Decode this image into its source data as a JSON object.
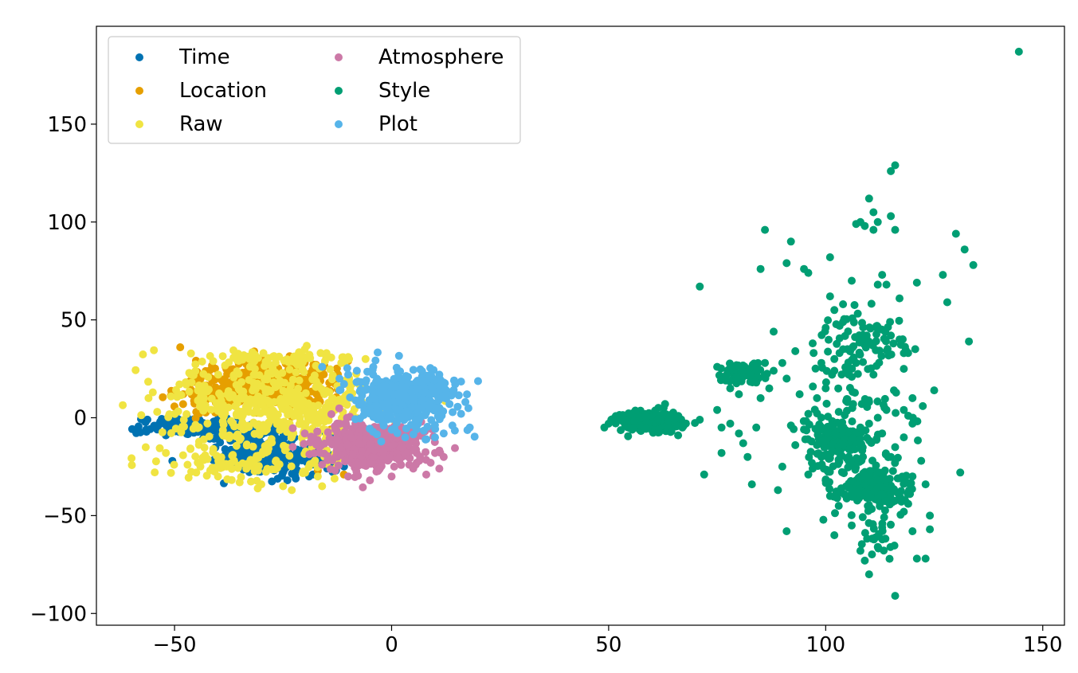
{
  "chart_data": {
    "type": "scatter",
    "title": "",
    "xlabel": "",
    "ylabel": "",
    "xlim": [
      -68,
      155
    ],
    "ylim": [
      -106,
      200
    ],
    "xticks": [
      -50,
      0,
      50,
      100,
      150
    ],
    "yticks": [
      -100,
      -50,
      0,
      50,
      100,
      150
    ],
    "xtick_labels": [
      "−50",
      "0",
      "50",
      "100",
      "150"
    ],
    "ytick_labels": [
      "−100",
      "−50",
      "0",
      "50",
      "100",
      "150"
    ],
    "grid": false,
    "legend_position": "top-left",
    "legend_columns": 2,
    "series": [
      {
        "name": "Time",
        "color": "#0072b2",
        "clusters": [
          {
            "cx": -27,
            "cy": -20,
            "sx": 6,
            "sy": 5,
            "n": 250
          },
          {
            "cx": -45,
            "cy": -5,
            "sx": 6,
            "sy": 2.5,
            "n": 140
          },
          {
            "cx": -33,
            "cy": -8,
            "sx": 4,
            "sy": 3,
            "n": 60
          }
        ],
        "points": [
          [
            -54,
            -6
          ],
          [
            -52,
            -9
          ],
          [
            -24,
            -32
          ],
          [
            -19,
            -30
          ],
          [
            -35,
            -4
          ],
          [
            -40,
            -3
          ],
          [
            -50,
            -1
          ]
        ]
      },
      {
        "name": "Location",
        "color": "#e69f00",
        "clusters": [
          {
            "cx": -28,
            "cy": 17,
            "sx": 7,
            "sy": 6,
            "n": 320
          },
          {
            "cx": -42,
            "cy": 14,
            "sx": 4,
            "sy": 5,
            "n": 90
          }
        ],
        "points": [
          [
            -20,
            28
          ],
          [
            -16,
            25
          ],
          [
            -10,
            29
          ],
          [
            -48,
            12
          ],
          [
            -45,
            3
          ],
          [
            -14,
            -6
          ],
          [
            -11,
            -29
          ],
          [
            -17,
            -27
          ],
          [
            -38,
            27
          ],
          [
            -30,
            30
          ]
        ]
      },
      {
        "name": "Raw",
        "color": "#f0e442",
        "clusters": [
          {
            "cx": -28,
            "cy": 5,
            "sx": 12,
            "sy": 13,
            "n": 380
          },
          {
            "cx": -38,
            "cy": -24,
            "sx": 8,
            "sy": 4,
            "n": 60
          },
          {
            "cx": -30,
            "cy": 30,
            "sx": 10,
            "sy": 2,
            "n": 60
          },
          {
            "cx": -18,
            "cy": -2,
            "sx": 5,
            "sy": 12,
            "n": 100
          }
        ],
        "points": [
          [
            -55,
            13
          ],
          [
            -56,
            10
          ],
          [
            -54,
            3
          ],
          [
            -52,
            -18
          ],
          [
            -47,
            -24
          ],
          [
            -45,
            -28
          ],
          [
            -40,
            -30
          ],
          [
            -35,
            -33
          ],
          [
            -30,
            -34
          ],
          [
            -25,
            -35
          ],
          [
            -20,
            35
          ],
          [
            -15,
            33
          ],
          [
            -10,
            31
          ],
          [
            -6,
            30
          ],
          [
            -16,
            -35
          ],
          [
            -17,
            -30
          ],
          [
            -13,
            -26
          ],
          [
            -23,
            -37
          ]
        ]
      },
      {
        "name": "Atmosphere",
        "color": "#cc79a7",
        "clusters": [
          {
            "cx": -5,
            "cy": -14,
            "sx": 6,
            "sy": 6,
            "n": 450
          }
        ],
        "points": [
          [
            -20,
            -8
          ],
          [
            -18,
            -10
          ],
          [
            10,
            -18
          ],
          [
            12,
            -20
          ],
          [
            11,
            -26
          ],
          [
            9,
            -23
          ],
          [
            -10,
            -30
          ],
          [
            -5,
            -32
          ],
          [
            0,
            -30
          ],
          [
            -13,
            -27
          ],
          [
            -16,
            -24
          ],
          [
            5,
            -26
          ]
        ]
      },
      {
        "name": "Style",
        "color": "#009e73",
        "clusters": [
          {
            "cx": 60,
            "cy": -2,
            "sx": 3.5,
            "sy": 2.4,
            "n": 300
          },
          {
            "cx": 81,
            "cy": 23,
            "sx": 3,
            "sy": 2.5,
            "n": 70
          },
          {
            "cx": 103,
            "cy": -12,
            "sx": 3,
            "sy": 5,
            "n": 120
          },
          {
            "cx": 112,
            "cy": -37,
            "sx": 4,
            "sy": 5,
            "n": 140
          },
          {
            "cx": 109,
            "cy": 40,
            "sx": 4,
            "sy": 8,
            "n": 70
          },
          {
            "cx": 106,
            "cy": -25,
            "sx": 5,
            "sy": 10,
            "n": 90
          },
          {
            "cx": 106,
            "cy": 15,
            "sx": 7,
            "sy": 15,
            "n": 60
          },
          {
            "cx": 111,
            "cy": -60,
            "sx": 3,
            "sy": 8,
            "n": 25
          }
        ],
        "points": [
          [
            49,
            -5
          ],
          [
            50,
            -3
          ],
          [
            52,
            -1
          ],
          [
            53,
            1
          ],
          [
            63,
            7
          ],
          [
            66,
            -9
          ],
          [
            67,
            -5
          ],
          [
            71,
            -1
          ],
          [
            72,
            -29
          ],
          [
            71,
            67
          ],
          [
            75,
            4
          ],
          [
            76,
            -5
          ],
          [
            76,
            -18
          ],
          [
            78,
            -3
          ],
          [
            80,
            -8
          ],
          [
            81,
            -13
          ],
          [
            82,
            -20
          ],
          [
            83,
            -34
          ],
          [
            84,
            -5
          ],
          [
            85,
            10
          ],
          [
            85,
            76
          ],
          [
            86,
            96
          ],
          [
            88,
            44
          ],
          [
            89,
            -37
          ],
          [
            90,
            -25
          ],
          [
            91,
            -58
          ],
          [
            91,
            79
          ],
          [
            92,
            90
          ],
          [
            93,
            34
          ],
          [
            94,
            12
          ],
          [
            95,
            76
          ],
          [
            96,
            74
          ],
          [
            97,
            38
          ],
          [
            98,
            10
          ],
          [
            99,
            28
          ],
          [
            100,
            46
          ],
          [
            101,
            62
          ],
          [
            101,
            82
          ],
          [
            102,
            55
          ],
          [
            104,
            58
          ],
          [
            106,
            70
          ],
          [
            107,
            99
          ],
          [
            108,
            100
          ],
          [
            109,
            98
          ],
          [
            110,
            112
          ],
          [
            111,
            105
          ],
          [
            111,
            96
          ],
          [
            112,
            100
          ],
          [
            112,
            68
          ],
          [
            113,
            73
          ],
          [
            114,
            68
          ],
          [
            115,
            103
          ],
          [
            115,
            126
          ],
          [
            116,
            129
          ],
          [
            116,
            96
          ],
          [
            116,
            -91
          ],
          [
            117,
            61
          ],
          [
            117,
            40
          ],
          [
            118,
            33
          ],
          [
            118,
            25
          ],
          [
            119,
            1
          ],
          [
            120,
            -58
          ],
          [
            121,
            -72
          ],
          [
            122,
            -22
          ],
          [
            123,
            -72
          ],
          [
            123,
            -34
          ],
          [
            124,
            -50
          ],
          [
            124,
            -57
          ],
          [
            125,
            14
          ],
          [
            127,
            73
          ],
          [
            128,
            59
          ],
          [
            130,
            94
          ],
          [
            131,
            -28
          ],
          [
            132,
            86
          ],
          [
            133,
            39
          ],
          [
            134,
            78
          ],
          [
            144.5,
            187
          ],
          [
            110,
            -80
          ],
          [
            109,
            -73
          ],
          [
            112,
            -66
          ],
          [
            113,
            -56
          ],
          [
            101,
            -40
          ],
          [
            100,
            -32
          ],
          [
            99,
            -20
          ],
          [
            98,
            -14
          ],
          [
            97,
            -26
          ],
          [
            96,
            -29
          ],
          [
            96,
            2
          ],
          [
            92,
            -4
          ],
          [
            93,
            -14
          ],
          [
            95,
            -6
          ],
          [
            120,
            10
          ],
          [
            121,
            69
          ],
          [
            117,
            -40
          ],
          [
            118,
            -48
          ],
          [
            119,
            -44
          ],
          [
            120,
            -30
          ],
          [
            115,
            -20
          ],
          [
            116,
            -15
          ],
          [
            118,
            -10
          ],
          [
            113,
            45
          ],
          [
            115,
            42
          ],
          [
            104,
            35
          ],
          [
            102,
            30
          ],
          [
            107,
            28
          ],
          [
            111,
            22
          ],
          [
            103,
            3
          ],
          [
            105,
            8
          ],
          [
            108,
            -5
          ],
          [
            110,
            -3
          ],
          [
            113,
            -8
          ],
          [
            90,
            28
          ],
          [
            88,
            24
          ],
          [
            87,
            15
          ],
          [
            91,
            20
          ],
          [
            100,
            15
          ],
          [
            102,
            24
          ],
          [
            110,
            8
          ],
          [
            112,
            0
          ],
          [
            114,
            4
          ],
          [
            118,
            4
          ],
          [
            120,
            -3
          ],
          [
            75,
            26
          ],
          [
            77,
            19
          ],
          [
            78,
            15
          ],
          [
            80,
            12
          ],
          [
            86,
            28
          ],
          [
            84,
            18
          ],
          [
            102,
            -60
          ],
          [
            108,
            -68
          ],
          [
            103,
            -45
          ],
          [
            106,
            -55
          ]
        ]
      },
      {
        "name": "Plot",
        "color": "#56b4e9",
        "clusters": [
          {
            "cx": 3,
            "cy": 10,
            "sx": 6,
            "sy": 7,
            "n": 450
          }
        ],
        "points": [
          [
            -10,
            22
          ],
          [
            -12,
            20
          ],
          [
            -8,
            24
          ],
          [
            17,
            8
          ],
          [
            18,
            -5
          ],
          [
            16,
            2
          ],
          [
            14,
            -4
          ],
          [
            12,
            -8
          ],
          [
            10,
            -10
          ],
          [
            8,
            -11
          ],
          [
            11,
            22
          ],
          [
            12,
            18
          ],
          [
            14,
            12
          ],
          [
            -16,
            26
          ],
          [
            -6,
            18
          ],
          [
            -12,
            14
          ]
        ]
      }
    ]
  }
}
